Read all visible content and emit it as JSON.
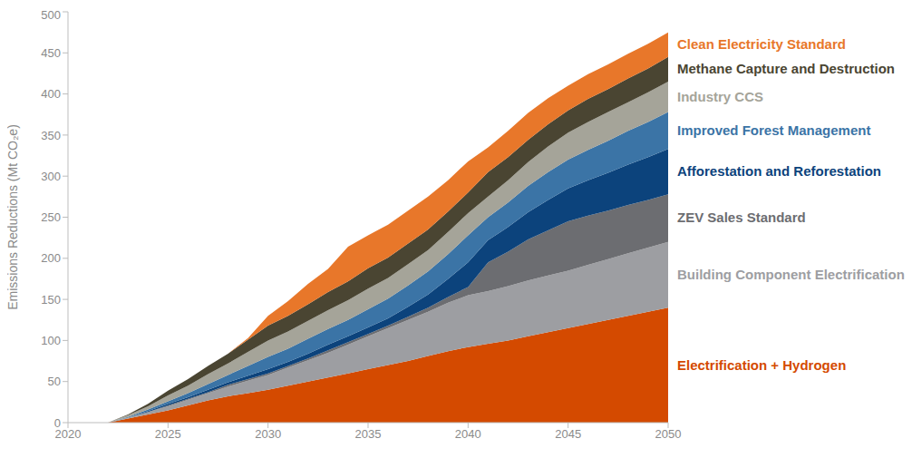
{
  "chart_data": {
    "type": "area",
    "stacked": true,
    "grid": false,
    "legend": "right",
    "y_label": "Emissions Reductions (Mt CO₂e)",
    "x": [
      2022,
      2023,
      2024,
      2025,
      2026,
      2027,
      2028,
      2029,
      2030,
      2031,
      2032,
      2033,
      2034,
      2035,
      2036,
      2037,
      2038,
      2039,
      2040,
      2041,
      2042,
      2043,
      2044,
      2045,
      2046,
      2047,
      2048,
      2049,
      2050
    ],
    "xlim": [
      2020,
      2050
    ],
    "xticks": [
      2020,
      2025,
      2030,
      2035,
      2040,
      2045,
      2050
    ],
    "ylim": [
      0,
      500
    ],
    "yticks": [
      0,
      50,
      100,
      150,
      200,
      250,
      300,
      350,
      400,
      450,
      500
    ],
    "series": [
      {
        "name": "Electrification + Hydrogen",
        "color": "#d44a00",
        "values": [
          0,
          5,
          10,
          15,
          21,
          27,
          32,
          36,
          40,
          45,
          50,
          55,
          60,
          65,
          70,
          75,
          81,
          87,
          92,
          96,
          100,
          105,
          110,
          115,
          120,
          125,
          130,
          135,
          140
        ]
      },
      {
        "name": "Building Component Electrification",
        "color": "#9d9ea2",
        "values": [
          0,
          1,
          3,
          5,
          7,
          9,
          12,
          15,
          18,
          22,
          26,
          30,
          35,
          40,
          45,
          50,
          54,
          59,
          63,
          64,
          66,
          68,
          69,
          70,
          72,
          74,
          76,
          78,
          80
        ]
      },
      {
        "name": "ZEV Sales Standard",
        "color": "#6c6d71",
        "values": [
          0,
          0,
          0,
          1,
          1,
          1,
          2,
          2,
          2,
          2,
          2,
          3,
          3,
          3,
          3,
          4,
          5,
          7,
          10,
          35,
          42,
          50,
          55,
          60,
          60,
          59,
          59,
          58,
          58
        ]
      },
      {
        "name": "Afforestation and Reforestation",
        "color": "#0c437c",
        "values": [
          0,
          0,
          1,
          2,
          2,
          3,
          3,
          4,
          5,
          5,
          6,
          7,
          7,
          8,
          9,
          12,
          16,
          22,
          30,
          27,
          30,
          33,
          37,
          40,
          43,
          46,
          49,
          52,
          55
        ]
      },
      {
        "name": "Improved Forest Management",
        "color": "#3b74a6",
        "values": [
          0,
          1,
          2,
          3,
          5,
          7,
          9,
          12,
          15,
          16,
          18,
          19,
          20,
          22,
          24,
          26,
          28,
          30,
          33,
          28,
          30,
          32,
          34,
          35,
          37,
          39,
          41,
          43,
          45
        ]
      },
      {
        "name": "Industry CCS",
        "color": "#a5a499",
        "values": [
          0,
          2,
          4,
          7,
          9,
          12,
          14,
          17,
          20,
          21,
          22,
          23,
          24,
          25,
          25,
          26,
          26,
          27,
          27,
          25,
          27,
          29,
          31,
          33,
          34,
          35,
          35,
          36,
          37
        ]
      },
      {
        "name": "Methane Capture and Destruction",
        "color": "#4a4532",
        "values": [
          0,
          1,
          3,
          6,
          8,
          10,
          12,
          15,
          18,
          19,
          20,
          22,
          23,
          25,
          25,
          25,
          25,
          25,
          25,
          30,
          28,
          27,
          27,
          27,
          28,
          28,
          29,
          29,
          30
        ]
      },
      {
        "name": "Clean Electricity Standard",
        "color": "#e8772a",
        "values": [
          0,
          0,
          0,
          0,
          0,
          0,
          0,
          2,
          12,
          18,
          25,
          28,
          42,
          40,
          40,
          40,
          40,
          38,
          38,
          30,
          32,
          33,
          32,
          30,
          30,
          30,
          30,
          30,
          30
        ]
      }
    ]
  }
}
